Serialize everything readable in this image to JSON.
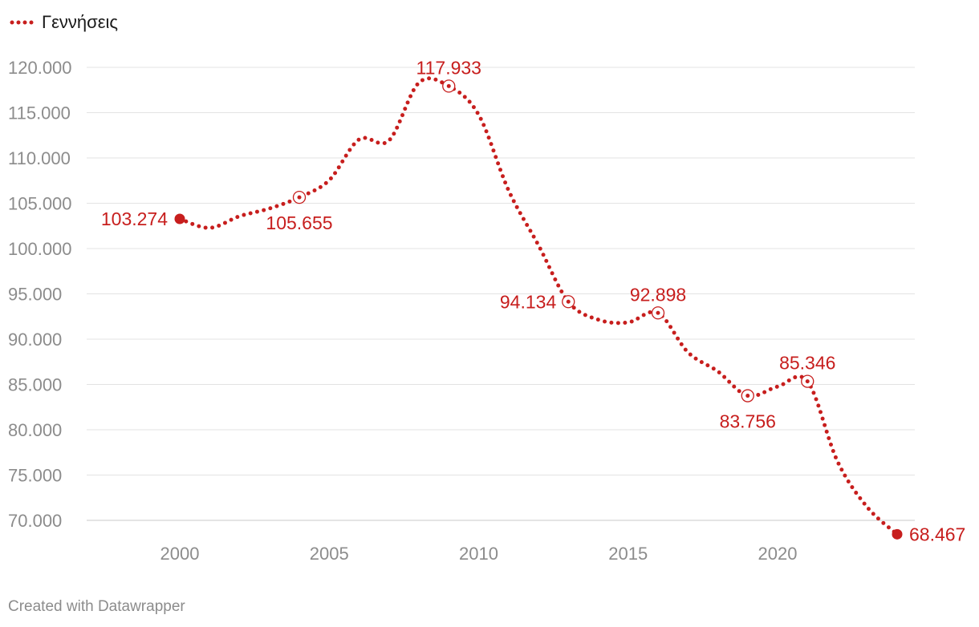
{
  "chart_data": {
    "type": "line",
    "title": "",
    "xlabel": "",
    "ylabel": "",
    "x": [
      2000,
      2001,
      2002,
      2003,
      2004,
      2005,
      2006,
      2007,
      2008,
      2009,
      2010,
      2011,
      2012,
      2013,
      2014,
      2015,
      2016,
      2017,
      2018,
      2019,
      2020,
      2021,
      2022,
      2023,
      2024
    ],
    "series": [
      {
        "name": "Γεννήσεις",
        "color": "#c71e1d",
        "values": [
          103274,
          102282,
          103569,
          104420,
          105655,
          107545,
          112042,
          111926,
          118302,
          117933,
          114766,
          106428,
          100371,
          94134,
          92149,
          91847,
          92898,
          88553,
          86440,
          83756,
          84764,
          85346,
          76541,
          71455,
          68467
        ]
      }
    ],
    "ylim": [
      68000,
      121000
    ],
    "xlim": [
      1996.5,
      2025.2
    ],
    "y_ticks": [
      70000,
      75000,
      80000,
      85000,
      90000,
      95000,
      100000,
      105000,
      110000,
      115000,
      120000
    ],
    "y_tick_labels": [
      "70.000",
      "75.000",
      "80.000",
      "85.000",
      "90.000",
      "95.000",
      "100.000",
      "105.000",
      "110.000",
      "115.000",
      "120.000"
    ],
    "x_ticks": [
      2000,
      2005,
      2010,
      2015,
      2020
    ],
    "x_tick_labels": [
      "2000",
      "2005",
      "2010",
      "2015",
      "2020"
    ],
    "grid": true,
    "legend_position": "top-left",
    "highlighted_points": [
      {
        "x": 2000,
        "label": "103.274",
        "style": "filled",
        "anchor": "left"
      },
      {
        "x": 2004,
        "label": "105.655",
        "style": "ring",
        "anchor": "below"
      },
      {
        "x": 2009,
        "label": "117.933",
        "style": "ring",
        "anchor": "above"
      },
      {
        "x": 2013,
        "label": "94.134",
        "style": "ring",
        "anchor": "left"
      },
      {
        "x": 2016,
        "label": "92.898",
        "style": "ring",
        "anchor": "above"
      },
      {
        "x": 2019,
        "label": "83.756",
        "style": "ring",
        "anchor": "below"
      },
      {
        "x": 2021,
        "label": "85.346",
        "style": "ring",
        "anchor": "above"
      },
      {
        "x": 2024,
        "label": "68.467",
        "style": "filled",
        "anchor": "right"
      }
    ]
  },
  "legend": {
    "label": "Γεννήσεις"
  },
  "footer": {
    "text": "Created with Datawrapper"
  }
}
